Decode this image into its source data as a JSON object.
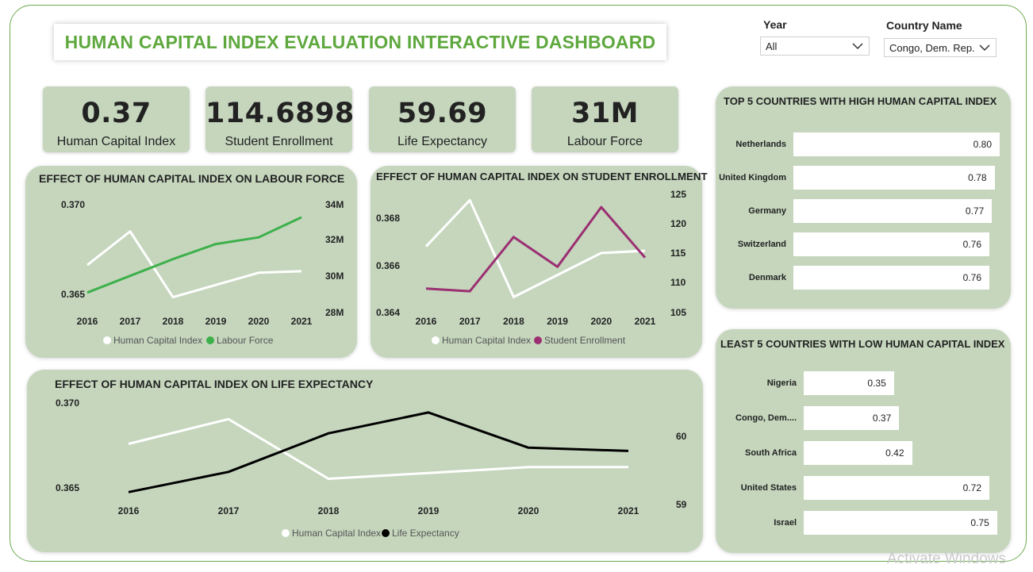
{
  "title": "HUMAN CAPITAL INDEX EVALUATION INTERACTIVE DASHBOARD",
  "filters": {
    "year": {
      "label": "Year",
      "value": "All"
    },
    "country": {
      "label": "Country Name",
      "value": "Congo, Dem. Rep."
    }
  },
  "kpis": [
    {
      "value": "0.37",
      "label": "Human Capital Index"
    },
    {
      "value": "114.6898",
      "label": "Student Enrollment"
    },
    {
      "value": "59.69",
      "label": "Life Expectancy"
    },
    {
      "value": "31M",
      "label": "Labour Force"
    }
  ],
  "colors": {
    "panel": "#c5d6bd",
    "title_green": "#5ea83e",
    "labour": "#3db04a",
    "enrollment": "#9b2f72",
    "life": "#000000",
    "hci": "#ffffff"
  },
  "chart_data": [
    {
      "type": "line",
      "title": "EFFECT OF HUMAN CAPITAL INDEX ON LABOUR FORCE",
      "x": [
        "2016",
        "2017",
        "2018",
        "2019",
        "2020",
        "2021"
      ],
      "y_ticks_left": [
        "0.370",
        "0.365"
      ],
      "y_ticks_right": [
        "34M",
        "32M",
        "30M",
        "28M"
      ],
      "ylim_left": [
        0.3645,
        0.3715
      ],
      "ylim_right": [
        27.8,
        34.2
      ],
      "series": [
        {
          "name": "Human Capital Index",
          "axis": "left",
          "values": [
            0.3675,
            0.3697,
            0.3654,
            0.3662,
            0.367,
            0.3671
          ]
        },
        {
          "name": "Labour Force",
          "axis": "right",
          "values": [
            28.9,
            29.9,
            30.9,
            31.8,
            32.2,
            33.4
          ]
        }
      ]
    },
    {
      "type": "line",
      "title": "EFFECT OF HUMAN CAPITAL INDEX ON STUDENT ENROLLMENT",
      "x": [
        "2016",
        "2017",
        "2018",
        "2019",
        "2020",
        "2021"
      ],
      "y_ticks_left": [
        "0.368",
        "0.366",
        "0.364"
      ],
      "y_ticks_right": [
        "125",
        "120",
        "115",
        "110",
        "105"
      ],
      "ylim_left": [
        0.364,
        0.3693
      ],
      "ylim_right": [
        105,
        126.5
      ],
      "series": [
        {
          "name": "Human Capital Index",
          "axis": "left",
          "values": [
            0.3669,
            0.369,
            0.3646,
            0.3656,
            0.3666,
            0.3667
          ]
        },
        {
          "name": "Student Enrollment",
          "axis": "right",
          "values": [
            109.0,
            108.5,
            118.5,
            113.0,
            124.0,
            114.7
          ]
        }
      ]
    },
    {
      "type": "line",
      "title": "EFFECT OF HUMAN CAPITAL INDEX ON LIFE EXPECTANCY",
      "x": [
        "2016",
        "2017",
        "2018",
        "2019",
        "2020",
        "2021"
      ],
      "y_ticks_left": [
        "0.370",
        "0.365"
      ],
      "y_ticks_right": [
        "60",
        "59"
      ],
      "ylim_left": [
        0.3639,
        0.3705
      ],
      "ylim_right": [
        58.93,
        60.4
      ],
      "series": [
        {
          "name": "Human Capital Index",
          "axis": "left",
          "values": [
            0.3678,
            0.3695,
            0.3654,
            0.3658,
            0.3662,
            0.3662
          ]
        },
        {
          "name": "Life Expectancy",
          "axis": "right",
          "values": [
            59.06,
            59.37,
            59.96,
            60.28,
            59.74,
            59.69
          ]
        }
      ]
    },
    {
      "type": "bar",
      "title": "TOP 5 COUNTRIES WITH HIGH HUMAN CAPITAL INDEX",
      "categories": [
        "Netherlands",
        "United Kingdom",
        "Germany",
        "Switzerland",
        "Denmark"
      ],
      "values": [
        0.8,
        0.78,
        0.77,
        0.76,
        0.76
      ],
      "labels": [
        "0.80",
        "0.78",
        "0.77",
        "0.76",
        "0.76"
      ],
      "xlim": [
        0,
        0.8
      ]
    },
    {
      "type": "bar",
      "title": "LEAST 5 COUNTRIES WITH LOW HUMAN CAPITAL INDEX",
      "categories": [
        "Nigeria",
        "Congo, Dem....",
        "South Africa",
        "United States",
        "Israel"
      ],
      "values": [
        0.35,
        0.37,
        0.42,
        0.72,
        0.75
      ],
      "labels": [
        "0.35",
        "0.37",
        "0.42",
        "0.72",
        "0.75"
      ],
      "xlim": [
        0,
        0.8
      ]
    }
  ],
  "watermark": "Activate Windows"
}
